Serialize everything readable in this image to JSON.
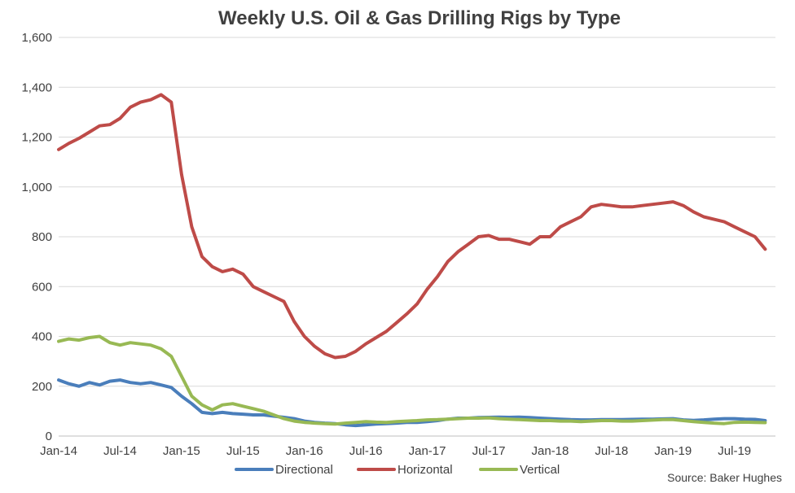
{
  "chart_data": {
    "type": "line",
    "title": "Weekly U.S. Oil & Gas Drilling Rigs by Type",
    "source": "Source: Baker Hughes",
    "ylim": [
      0,
      1600
    ],
    "yticks": [
      "0",
      "200",
      "400",
      "600",
      "800",
      "1,000",
      "1,200",
      "1,400",
      "1,600"
    ],
    "ytick_values": [
      0,
      200,
      400,
      600,
      800,
      1000,
      1200,
      1400,
      1600
    ],
    "xlim": [
      "2014-01",
      "2019-11"
    ],
    "xticks": [
      "Jan-14",
      "Jul-14",
      "Jan-15",
      "Jul-15",
      "Jan-16",
      "Jul-16",
      "Jan-17",
      "Jul-17",
      "Jan-18",
      "Jul-18",
      "Jan-19",
      "Jul-19"
    ],
    "xtick_values": [
      "2014-01",
      "2014-07",
      "2015-01",
      "2015-07",
      "2016-01",
      "2016-07",
      "2017-01",
      "2017-07",
      "2018-01",
      "2018-07",
      "2019-01",
      "2019-07"
    ],
    "grid": true,
    "legend_position": "bottom",
    "series": [
      {
        "name": "Directional",
        "color": "#4a7ebb",
        "x": [
          "2014-01",
          "2014-02",
          "2014-03",
          "2014-04",
          "2014-05",
          "2014-06",
          "2014-07",
          "2014-08",
          "2014-09",
          "2014-10",
          "2014-11",
          "2014-12",
          "2015-01",
          "2015-02",
          "2015-03",
          "2015-04",
          "2015-05",
          "2015-06",
          "2015-07",
          "2015-08",
          "2015-09",
          "2015-10",
          "2015-11",
          "2015-12",
          "2016-01",
          "2016-02",
          "2016-03",
          "2016-04",
          "2016-05",
          "2016-06",
          "2016-07",
          "2016-08",
          "2016-09",
          "2016-10",
          "2016-11",
          "2016-12",
          "2017-01",
          "2017-02",
          "2017-03",
          "2017-04",
          "2017-05",
          "2017-06",
          "2017-07",
          "2017-08",
          "2017-09",
          "2017-10",
          "2017-11",
          "2017-12",
          "2018-01",
          "2018-02",
          "2018-03",
          "2018-04",
          "2018-05",
          "2018-06",
          "2018-07",
          "2018-08",
          "2018-09",
          "2018-10",
          "2018-11",
          "2018-12",
          "2019-01",
          "2019-02",
          "2019-03",
          "2019-04",
          "2019-05",
          "2019-06",
          "2019-07",
          "2019-08",
          "2019-09",
          "2019-10"
        ],
        "y": [
          225,
          210,
          200,
          215,
          205,
          220,
          225,
          215,
          210,
          215,
          205,
          195,
          160,
          130,
          95,
          90,
          95,
          90,
          88,
          85,
          85,
          80,
          75,
          70,
          60,
          55,
          52,
          50,
          45,
          42,
          45,
          48,
          50,
          52,
          55,
          55,
          58,
          62,
          68,
          72,
          72,
          74,
          75,
          76,
          75,
          76,
          74,
          72,
          70,
          68,
          66,
          65,
          65,
          66,
          66,
          66,
          67,
          68,
          68,
          69,
          70,
          65,
          63,
          65,
          68,
          70,
          70,
          68,
          67,
          62
        ]
      },
      {
        "name": "Horizontal",
        "color": "#be4b48",
        "x": [
          "2014-01",
          "2014-02",
          "2014-03",
          "2014-04",
          "2014-05",
          "2014-06",
          "2014-07",
          "2014-08",
          "2014-09",
          "2014-10",
          "2014-11",
          "2014-12",
          "2015-01",
          "2015-02",
          "2015-03",
          "2015-04",
          "2015-05",
          "2015-06",
          "2015-07",
          "2015-08",
          "2015-09",
          "2015-10",
          "2015-11",
          "2015-12",
          "2016-01",
          "2016-02",
          "2016-03",
          "2016-04",
          "2016-05",
          "2016-06",
          "2016-07",
          "2016-08",
          "2016-09",
          "2016-10",
          "2016-11",
          "2016-12",
          "2017-01",
          "2017-02",
          "2017-03",
          "2017-04",
          "2017-05",
          "2017-06",
          "2017-07",
          "2017-08",
          "2017-09",
          "2017-10",
          "2017-11",
          "2017-12",
          "2018-01",
          "2018-02",
          "2018-03",
          "2018-04",
          "2018-05",
          "2018-06",
          "2018-07",
          "2018-08",
          "2018-09",
          "2018-10",
          "2018-11",
          "2018-12",
          "2019-01",
          "2019-02",
          "2019-03",
          "2019-04",
          "2019-05",
          "2019-06",
          "2019-07",
          "2019-08",
          "2019-09",
          "2019-10"
        ],
        "y": [
          1150,
          1175,
          1195,
          1220,
          1245,
          1250,
          1275,
          1320,
          1340,
          1350,
          1370,
          1340,
          1050,
          840,
          720,
          680,
          660,
          670,
          650,
          600,
          580,
          560,
          540,
          460,
          400,
          360,
          330,
          315,
          320,
          340,
          370,
          395,
          420,
          455,
          490,
          530,
          590,
          640,
          700,
          740,
          770,
          800,
          805,
          790,
          790,
          780,
          770,
          800,
          800,
          840,
          860,
          880,
          920,
          930,
          925,
          920,
          920,
          925,
          930,
          935,
          940,
          925,
          900,
          880,
          870,
          860,
          840,
          820,
          800,
          750
        ]
      },
      {
        "name": "Vertical",
        "color": "#98b954",
        "x": [
          "2014-01",
          "2014-02",
          "2014-03",
          "2014-04",
          "2014-05",
          "2014-06",
          "2014-07",
          "2014-08",
          "2014-09",
          "2014-10",
          "2014-11",
          "2014-12",
          "2015-01",
          "2015-02",
          "2015-03",
          "2015-04",
          "2015-05",
          "2015-06",
          "2015-07",
          "2015-08",
          "2015-09",
          "2015-10",
          "2015-11",
          "2015-12",
          "2016-01",
          "2016-02",
          "2016-03",
          "2016-04",
          "2016-05",
          "2016-06",
          "2016-07",
          "2016-08",
          "2016-09",
          "2016-10",
          "2016-11",
          "2016-12",
          "2017-01",
          "2017-02",
          "2017-03",
          "2017-04",
          "2017-05",
          "2017-06",
          "2017-07",
          "2017-08",
          "2017-09",
          "2017-10",
          "2017-11",
          "2017-12",
          "2018-01",
          "2018-02",
          "2018-03",
          "2018-04",
          "2018-05",
          "2018-06",
          "2018-07",
          "2018-08",
          "2018-09",
          "2018-10",
          "2018-11",
          "2018-12",
          "2019-01",
          "2019-02",
          "2019-03",
          "2019-04",
          "2019-05",
          "2019-06",
          "2019-07",
          "2019-08",
          "2019-09",
          "2019-10"
        ],
        "y": [
          380,
          390,
          385,
          395,
          400,
          375,
          365,
          375,
          370,
          365,
          350,
          320,
          240,
          160,
          125,
          105,
          125,
          130,
          120,
          110,
          100,
          85,
          70,
          60,
          55,
          52,
          50,
          48,
          52,
          55,
          58,
          56,
          55,
          58,
          60,
          62,
          65,
          66,
          68,
          70,
          72,
          72,
          73,
          70,
          68,
          66,
          64,
          62,
          62,
          60,
          60,
          58,
          60,
          62,
          62,
          60,
          60,
          62,
          64,
          66,
          66,
          62,
          58,
          55,
          52,
          50,
          55,
          56,
          55,
          54
        ]
      }
    ]
  }
}
